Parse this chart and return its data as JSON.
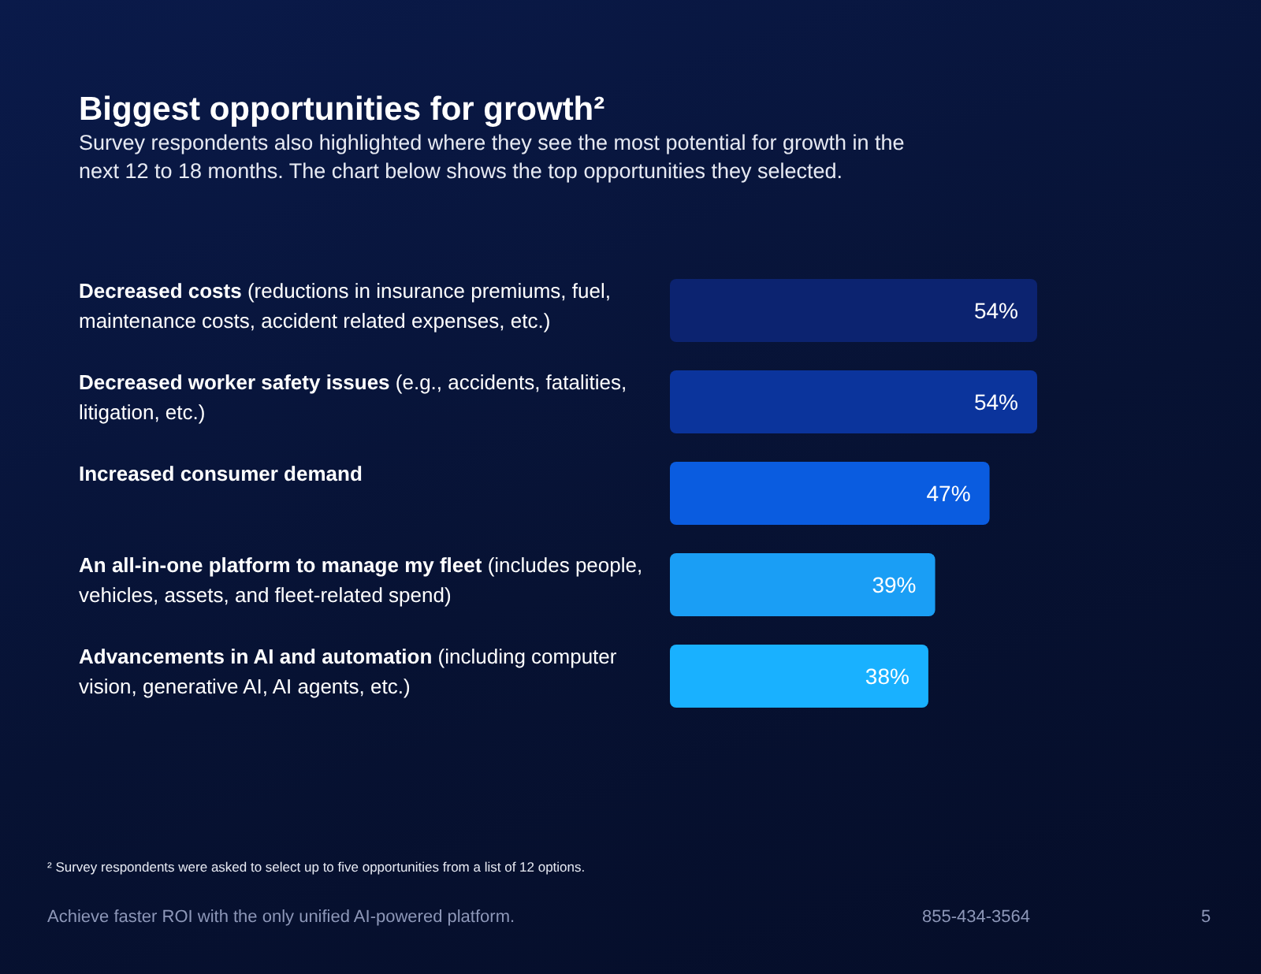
{
  "chart_data": {
    "type": "bar",
    "orientation": "horizontal",
    "title": "Biggest opportunities for growth²",
    "subtitle": "Survey respondents also highlighted where they see the most potential for growth in the next 12 to 18 months. The chart below shows the top opportunities they selected.",
    "categories": [
      "Decreased costs (reductions in insurance premiums, fuel, maintenance costs, accident related expenses, etc.)",
      "Decreased worker safety issues (e.g., accidents, fatalities, litigation, etc.)",
      "Increased consumer demand",
      "An all-in-one platform to manage my fleet (includes people, vehicles, assets, and fleet-related spend)",
      "Advancements in AI and automation (including computer vision, generative AI, AI agents, etc.)"
    ],
    "values": [
      54,
      54,
      47,
      39,
      38
    ],
    "colors": [
      "#0c2370",
      "#0b349c",
      "#0a5ce0",
      "#1a9ef5",
      "#19b1ff"
    ],
    "value_labels": [
      "54%",
      "54%",
      "47%",
      "39%",
      "38%"
    ],
    "annotations": [
      "² Survey respondents were asked to select up to five opportunities from a list of 12 options.",
      "Achieve faster ROI with the only unified AI-powered platform.",
      "855-434-3564",
      "5"
    ]
  }
}
